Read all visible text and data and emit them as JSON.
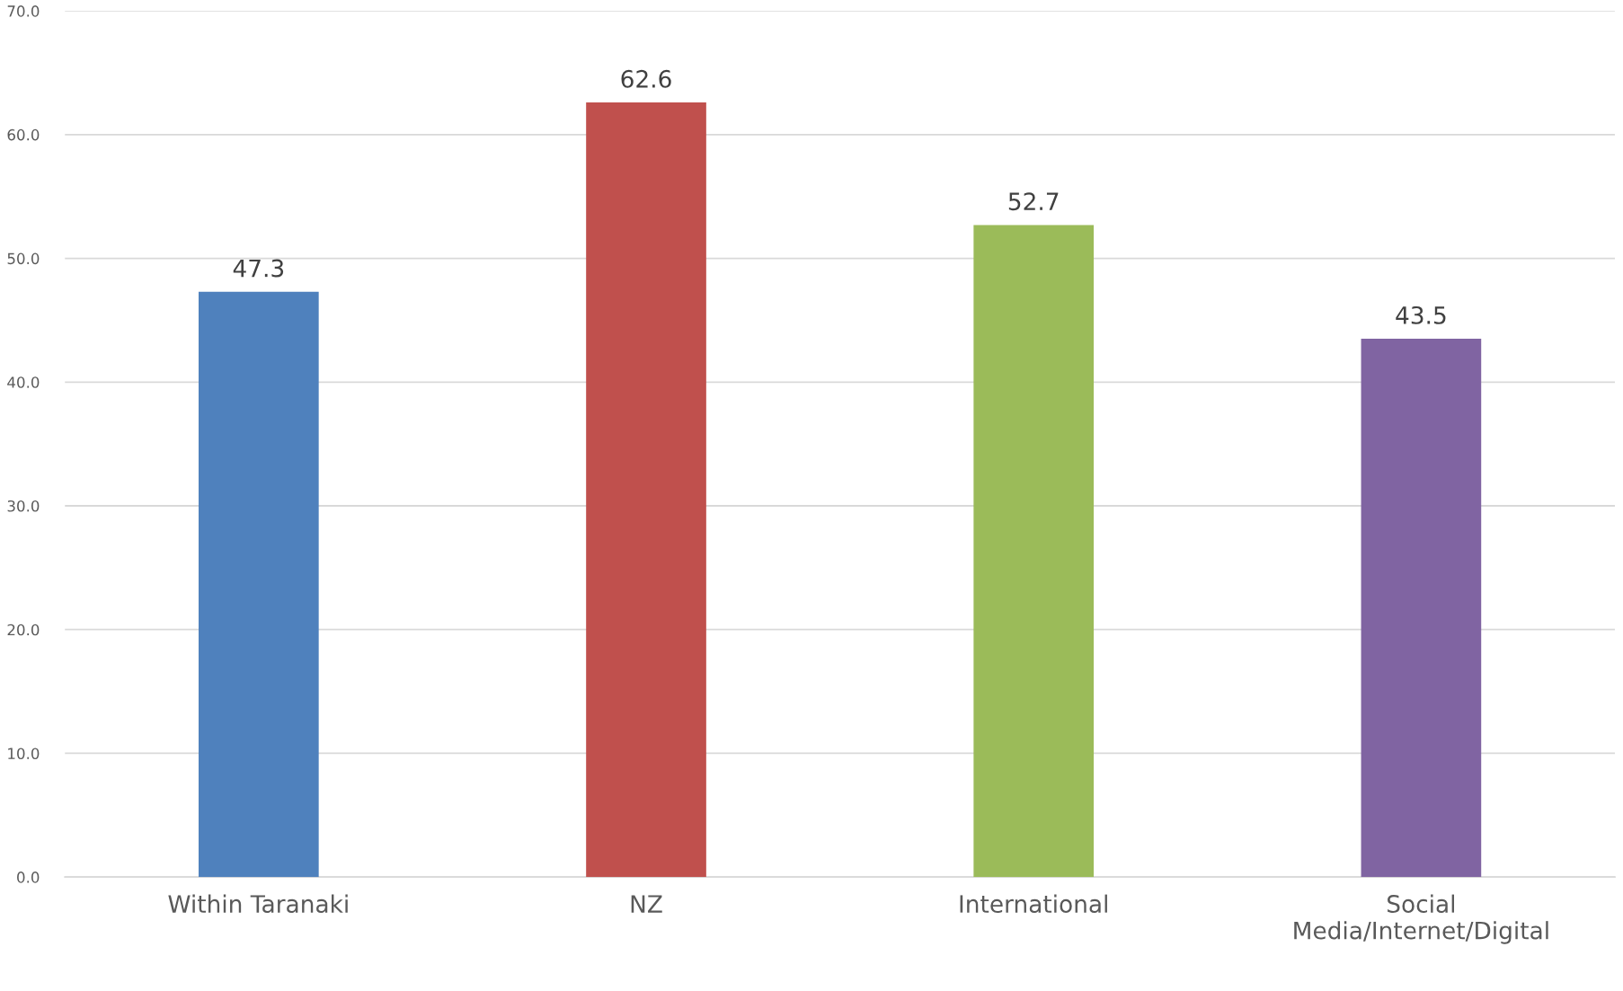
{
  "chart_data": {
    "type": "bar",
    "categories": [
      "Within Taranaki",
      "NZ",
      "International",
      "Social\nMedia/Internet/Digital"
    ],
    "values": [
      47.3,
      62.6,
      52.7,
      43.5
    ],
    "colors": [
      "#4f81bd",
      "#c0504d",
      "#9bbb59",
      "#8064a2"
    ],
    "ylim": [
      0,
      70
    ],
    "yticks": [
      {
        "value": 0,
        "label": "0.0"
      },
      {
        "value": 10,
        "label": "10.0"
      },
      {
        "value": 20,
        "label": "20.0"
      },
      {
        "value": 30,
        "label": "30.0"
      },
      {
        "value": 40,
        "label": "40.0"
      },
      {
        "value": 50,
        "label": "50.0"
      },
      {
        "value": 60,
        "label": "60.0"
      },
      {
        "value": 70,
        "label": "70.0"
      }
    ],
    "grid": "y",
    "data_labels": true,
    "legend": false
  }
}
